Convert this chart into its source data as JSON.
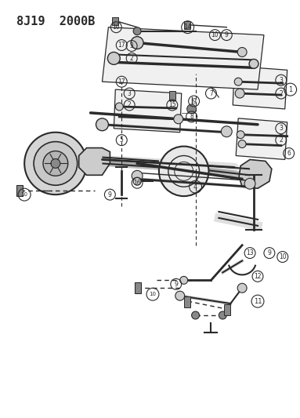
{
  "title": "8J19  2000B",
  "bg_color": "#ffffff",
  "line_color": "#2a2a2a",
  "fig_width": 3.83,
  "fig_height": 5.33,
  "dpi": 100
}
